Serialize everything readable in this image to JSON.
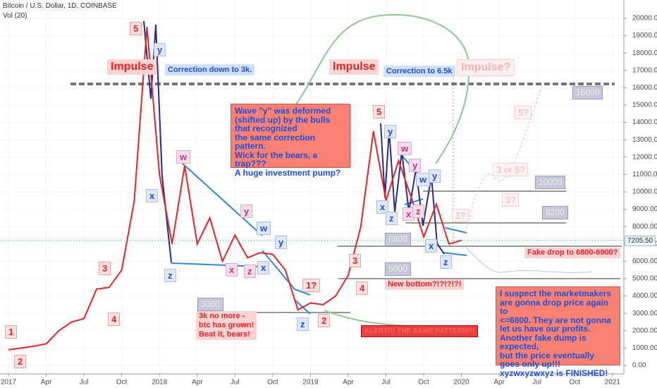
{
  "chart_data": {
    "type": "line",
    "title": "Bitcoin / U.S. Dollar, 1D, COINBASE",
    "indicator": "Vol (20)",
    "x": [
      "2017-01",
      "2017-02",
      "2017-03",
      "2017-04",
      "2017-05",
      "2017-06",
      "2017-07",
      "2017-08",
      "2017-09",
      "2017-10",
      "2017-11",
      "2017-12",
      "2018-01",
      "2018-02",
      "2018-03",
      "2018-04",
      "2018-05",
      "2018-06",
      "2018-07",
      "2018-08",
      "2018-09",
      "2018-10",
      "2018-11",
      "2018-12",
      "2019-01",
      "2019-02",
      "2019-03",
      "2019-04",
      "2019-05",
      "2019-06",
      "2019-07",
      "2019-08",
      "2019-09",
      "2019-10",
      "2019-11",
      "2019-12",
      "2020-01"
    ],
    "series": [
      {
        "name": "BTCUSD",
        "color": "#e3242b",
        "values": [
          900,
          1000,
          1100,
          1250,
          2000,
          2500,
          2700,
          4400,
          4500,
          5500,
          9500,
          19500,
          11000,
          7000,
          11500,
          7000,
          8500,
          6000,
          7500,
          6200,
          6500,
          6400,
          5500,
          3200,
          3600,
          3500,
          4000,
          5200,
          8000,
          13500,
          9500,
          11800,
          9700,
          7400,
          9300,
          7000,
          7205.5
        ]
      }
    ],
    "last_price": {
      "value": 7205.5,
      "label": "7205.50"
    },
    "ylim": [
      -500,
      20000
    ],
    "yticks": [
      {
        "value": 0,
        "label": "0.00"
      },
      {
        "value": 1000,
        "label": "1000.00"
      },
      {
        "value": 2000,
        "label": "2000.00"
      },
      {
        "value": 3000,
        "label": "3000.00"
      },
      {
        "value": 4000,
        "label": "4000.00"
      },
      {
        "value": 5000,
        "label": "5000.00"
      },
      {
        "value": 6000,
        "label": "6000.00"
      },
      {
        "value": 7000,
        "label": "7000.00"
      },
      {
        "value": 8000,
        "label": "8000.00"
      },
      {
        "value": 9000,
        "label": "9000.00"
      },
      {
        "value": 10000,
        "label": "10000.00"
      },
      {
        "value": 11000,
        "label": "11000.00"
      },
      {
        "value": 12000,
        "label": "12000.00"
      },
      {
        "value": 13000,
        "label": "13000.00"
      },
      {
        "value": 14000,
        "label": "14000.00"
      },
      {
        "value": 15000,
        "label": "15000.00"
      },
      {
        "value": 16000,
        "label": "16000.00"
      },
      {
        "value": 17000,
        "label": "17000.00"
      },
      {
        "value": 18000,
        "label": "18000.00"
      },
      {
        "value": 19000,
        "label": "19000.00"
      },
      {
        "value": 20000,
        "label": "20000.00"
      }
    ],
    "xticks": [
      {
        "value": "2017-01",
        "label": "2017"
      },
      {
        "value": "2017-04",
        "label": "Apr"
      },
      {
        "value": "2017-07",
        "label": "Jul"
      },
      {
        "value": "2017-10",
        "label": "Oct"
      },
      {
        "value": "2018-01",
        "label": "2018"
      },
      {
        "value": "2018-04",
        "label": "Apr"
      },
      {
        "value": "2018-07",
        "label": "Jul"
      },
      {
        "value": "2018-10",
        "label": "Oct"
      },
      {
        "value": "2019-01",
        "label": "2019"
      },
      {
        "value": "2019-04",
        "label": "Apr"
      },
      {
        "value": "2019-07",
        "label": "Jul"
      },
      {
        "value": "2019-10",
        "label": "Oct"
      },
      {
        "value": "2020-01",
        "label": "2020"
      },
      {
        "value": "2020-04",
        "label": "Apr"
      },
      {
        "value": "2020-07",
        "label": "Jul"
      },
      {
        "value": "2020-10",
        "label": "Oct"
      },
      {
        "value": "2021-01",
        "label": "2021"
      }
    ],
    "grid": true,
    "annotations": [
      {
        "text": "1"
      },
      {
        "text": "2"
      },
      {
        "text": "3"
      },
      {
        "text": "4"
      },
      {
        "text": "5"
      },
      {
        "text": "x"
      },
      {
        "text": "y"
      },
      {
        "text": "z"
      },
      {
        "text": "w"
      },
      {
        "text": "x"
      },
      {
        "text": "y"
      },
      {
        "text": "z"
      },
      {
        "text": "w"
      },
      {
        "text": "x"
      },
      {
        "text": "y"
      },
      {
        "text": "1?"
      },
      {
        "text": "z"
      },
      {
        "text": "2"
      },
      {
        "text": "3"
      },
      {
        "text": "4"
      },
      {
        "text": "5"
      },
      {
        "text": "y"
      },
      {
        "text": "x"
      },
      {
        "text": "z"
      },
      {
        "text": "w"
      },
      {
        "text": "y"
      },
      {
        "text": "x"
      },
      {
        "text": "z"
      },
      {
        "text": "w"
      },
      {
        "text": "y"
      },
      {
        "text": "x"
      },
      {
        "text": "z"
      },
      {
        "text": "1?"
      },
      {
        "text": "5?"
      },
      {
        "text": "3 or 5?"
      },
      {
        "text": "3?"
      },
      {
        "text": "Impulse"
      },
      {
        "text": "Correction down to 3k."
      },
      {
        "text": "Impulse"
      },
      {
        "text": "Correction to 6.5k"
      },
      {
        "text": "Impulse?"
      },
      {
        "lines": [
          "Wave \"y\" was deformed",
          "(shifted up) by the bulls",
          "that recognized",
          "the same correction pattern.",
          "Wick for the bears, a trap???",
          "A huge investment pump?"
        ]
      },
      {
        "text": "16000"
      },
      {
        "text": "10000"
      },
      {
        "text": "8200"
      },
      {
        "text": "6800"
      },
      {
        "text": "5000"
      },
      {
        "text": "3000"
      },
      {
        "lines": [
          "3k no more -",
          "btc has grown!",
          "Beat it, bears!"
        ]
      },
      {
        "text": "New bottom?!?!?!?!"
      },
      {
        "text": "Fake drop to 6800-6900?"
      },
      {
        "text": "ALERT!!! THE SAME PATTERN!!!"
      },
      {
        "lines": [
          "I suspect the marketmakers",
          "are gonna drop price again to",
          "<=6800. They are not gonna",
          "let us have our profits.",
          "Another fake dump is expected,",
          "but the price eventually",
          "goes only up!!!",
          "xyzwxyzwxyz is FINISHED!"
        ]
      }
    ]
  }
}
